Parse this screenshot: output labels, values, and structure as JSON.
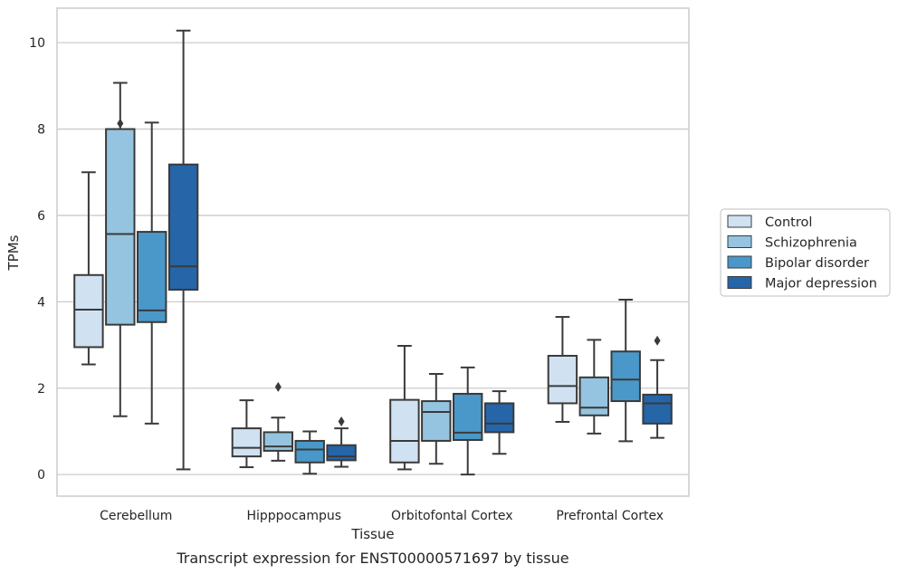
{
  "chart_data": {
    "type": "boxplot",
    "caption": "Transcript expression for ENST00000571697 by tissue",
    "xlabel": "Tissue",
    "ylabel": "TPMs",
    "ylim": [
      -0.5,
      10.8
    ],
    "yticks": [
      0,
      2,
      4,
      6,
      8,
      10
    ],
    "ytick_labels": [
      "0",
      "2",
      "4",
      "6",
      "8",
      "10"
    ],
    "grid": true,
    "legend_placement": "right-outside",
    "categories": [
      "Cerebellum",
      "Hipppocampus",
      "Orbitofontal Cortex",
      "Prefrontal Cortex"
    ],
    "series": [
      {
        "name": "Control",
        "color": "#d0e1f2",
        "boxes": [
          {
            "whislo": 2.55,
            "q1": 2.95,
            "med": 3.82,
            "q3": 4.62,
            "whishi": 7.0,
            "fliers": []
          },
          {
            "whislo": 0.17,
            "q1": 0.42,
            "med": 0.62,
            "q3": 1.07,
            "whishi": 1.72,
            "fliers": []
          },
          {
            "whislo": 0.12,
            "q1": 0.28,
            "med": 0.78,
            "q3": 1.73,
            "whishi": 2.98,
            "fliers": []
          },
          {
            "whislo": 1.22,
            "q1": 1.65,
            "med": 2.05,
            "q3": 2.75,
            "whishi": 3.65,
            "fliers": []
          }
        ]
      },
      {
        "name": "Schizophrenia",
        "color": "#94c4df",
        "boxes": [
          {
            "whislo": 1.35,
            "q1": 3.47,
            "med": 5.57,
            "q3": 8.0,
            "whishi": 9.07,
            "fliers": [
              8.13
            ]
          },
          {
            "whislo": 0.32,
            "q1": 0.55,
            "med": 0.65,
            "q3": 0.98,
            "whishi": 1.32,
            "fliers": [
              2.03
            ]
          },
          {
            "whislo": 0.25,
            "q1": 0.78,
            "med": 1.45,
            "q3": 1.7,
            "whishi": 2.33,
            "fliers": []
          },
          {
            "whislo": 0.95,
            "q1": 1.37,
            "med": 1.55,
            "q3": 2.25,
            "whishi": 3.12,
            "fliers": []
          }
        ]
      },
      {
        "name": "Bipolar disorder",
        "color": "#4a98c9",
        "boxes": [
          {
            "whislo": 1.18,
            "q1": 3.53,
            "med": 3.8,
            "q3": 5.62,
            "whishi": 8.15,
            "fliers": []
          },
          {
            "whislo": 0.02,
            "q1": 0.28,
            "med": 0.58,
            "q3": 0.78,
            "whishi": 1.0,
            "fliers": []
          },
          {
            "whislo": 0.0,
            "q1": 0.8,
            "med": 0.97,
            "q3": 1.87,
            "whishi": 2.48,
            "fliers": []
          },
          {
            "whislo": 0.77,
            "q1": 1.7,
            "med": 2.2,
            "q3": 2.85,
            "whishi": 4.05,
            "fliers": []
          }
        ]
      },
      {
        "name": "Major depression",
        "color": "#2565a8",
        "boxes": [
          {
            "whislo": 0.12,
            "q1": 4.28,
            "med": 4.82,
            "q3": 7.18,
            "whishi": 10.28,
            "fliers": []
          },
          {
            "whislo": 0.18,
            "q1": 0.33,
            "med": 0.42,
            "q3": 0.68,
            "whishi": 1.07,
            "fliers": [
              1.23
            ]
          },
          {
            "whislo": 0.48,
            "q1": 0.98,
            "med": 1.18,
            "q3": 1.65,
            "whishi": 1.93,
            "fliers": []
          },
          {
            "whislo": 0.85,
            "q1": 1.18,
            "med": 1.65,
            "q3": 1.85,
            "whishi": 2.65,
            "fliers": [
              3.1
            ]
          }
        ]
      }
    ]
  }
}
